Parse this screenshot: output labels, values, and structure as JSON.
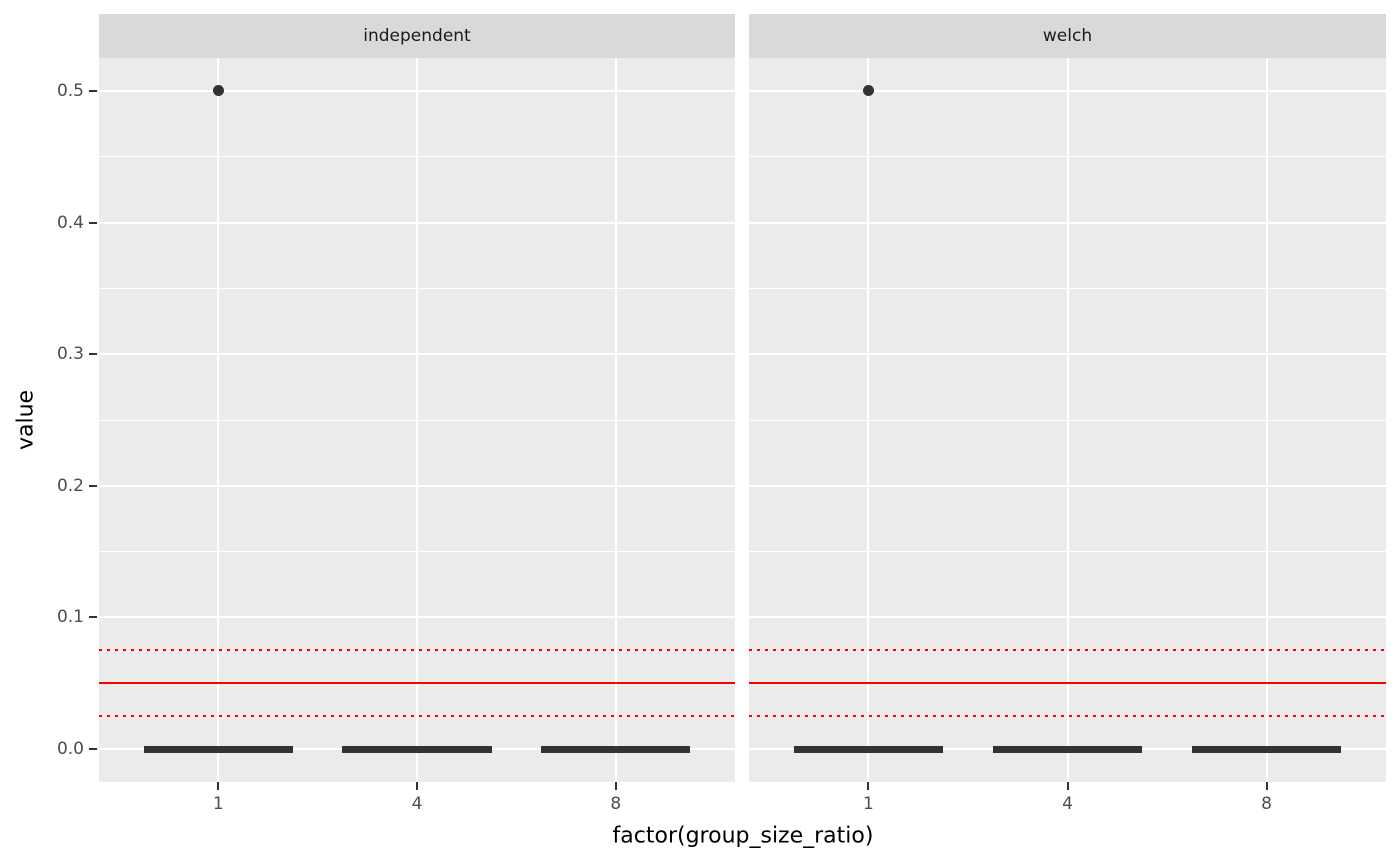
{
  "chart_data": {
    "type": "boxplot",
    "x_categories": [
      "1",
      "4",
      "8"
    ],
    "xlabel": "factor(group_size_ratio)",
    "ylabel": "value",
    "y_ticks": [
      "0.0",
      "0.1",
      "0.2",
      "0.3",
      "0.4",
      "0.5"
    ],
    "ylim": [
      -0.025,
      0.525
    ],
    "grid": true,
    "legend": "none",
    "reference_lines": [
      {
        "y": 0.075,
        "style": "dotted"
      },
      {
        "y": 0.05,
        "style": "solid"
      },
      {
        "y": 0.025,
        "style": "dotted"
      }
    ],
    "facets": [
      {
        "label": "independent",
        "boxes": [
          {
            "category": "1",
            "min": 0,
            "q1": 0,
            "median": 0,
            "q3": 0,
            "max": 0,
            "outliers": [
              0.5
            ]
          },
          {
            "category": "4",
            "min": 0,
            "q1": 0,
            "median": 0,
            "q3": 0,
            "max": 0,
            "outliers": []
          },
          {
            "category": "8",
            "min": 0,
            "q1": 0,
            "median": 0,
            "q3": 0,
            "max": 0,
            "outliers": []
          }
        ]
      },
      {
        "label": "welch",
        "boxes": [
          {
            "category": "1",
            "min": 0,
            "q1": 0,
            "median": 0,
            "q3": 0,
            "max": 0,
            "outliers": [
              0.5
            ]
          },
          {
            "category": "4",
            "min": 0,
            "q1": 0,
            "median": 0,
            "q3": 0,
            "max": 0,
            "outliers": []
          },
          {
            "category": "8",
            "min": 0,
            "q1": 0,
            "median": 0,
            "q3": 0,
            "max": 0,
            "outliers": []
          }
        ]
      }
    ]
  },
  "colors": {
    "background": "#FFFFFF",
    "panel_background": "#EBEBEB",
    "strip_background": "#D9D9D9",
    "strip_text": "#1A1A1A",
    "gridline": "#FFFFFF",
    "reference_line": "#FF0000",
    "box": "#333333",
    "outlier_point": "#333333",
    "tick_mark": "#333333",
    "axis_text": "#4D4D4D",
    "axis_title": "#000000"
  }
}
